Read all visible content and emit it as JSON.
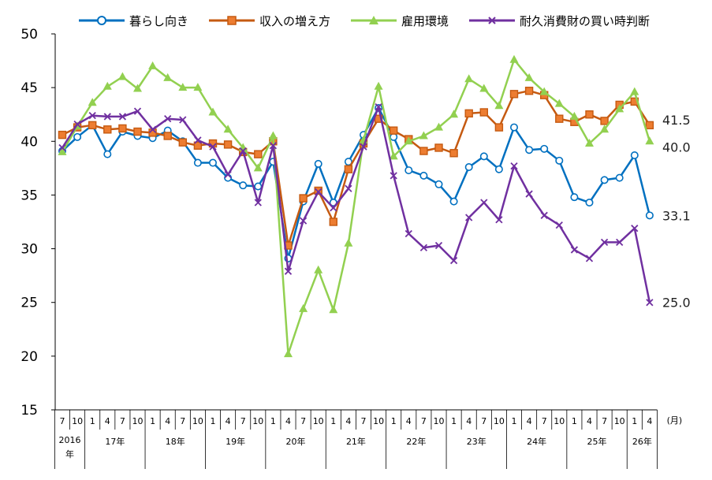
{
  "chart_data": {
    "type": "line",
    "title": "",
    "xlabel": "",
    "ylabel": "",
    "ylim": [
      15,
      50
    ],
    "yticks": [
      15,
      20,
      25,
      30,
      35,
      40,
      45,
      50
    ],
    "grid": false,
    "legend_position": "top",
    "month_unit": "(月)",
    "x_months": [
      "7",
      "10",
      "1",
      "4",
      "7",
      "10",
      "1",
      "4",
      "7",
      "10",
      "1",
      "4",
      "7",
      "10",
      "1",
      "4",
      "7",
      "10",
      "1",
      "4",
      "7",
      "10",
      "1",
      "4",
      "7",
      "10",
      "1",
      "4",
      "7",
      "10",
      "1",
      "4",
      "7",
      "10",
      "1",
      "4",
      "7",
      "10",
      "1",
      "4"
    ],
    "year_groups": [
      {
        "label": "2016年",
        "start": 0,
        "end": 1
      },
      {
        "label": "17年",
        "start": 2,
        "end": 5
      },
      {
        "label": "18年",
        "start": 6,
        "end": 9
      },
      {
        "label": "19年",
        "start": 10,
        "end": 13
      },
      {
        "label": "20年",
        "start": 14,
        "end": 17
      },
      {
        "label": "21年",
        "start": 18,
        "end": 21
      },
      {
        "label": "22年",
        "start": 22,
        "end": 25
      },
      {
        "label": "23年",
        "start": 26,
        "end": 29
      },
      {
        "label": "24年",
        "start": 30,
        "end": 33
      },
      {
        "label": "25年",
        "start": 34,
        "end": 37
      },
      {
        "label": "26年",
        "start": 38,
        "end": 39
      }
    ],
    "series": [
      {
        "name": "暮らし向き",
        "color": "#0070C0",
        "marker": "circle",
        "values": [
          39.1,
          40.4,
          41.5,
          38.8,
          40.9,
          40.5,
          40.3,
          41.0,
          40.0,
          38.0,
          38.0,
          36.6,
          35.9,
          35.8,
          38.1,
          29.1,
          34.4,
          37.9,
          34.3,
          38.1,
          40.6,
          43.1,
          40.4,
          37.3,
          36.8,
          36.0,
          34.4,
          37.6,
          38.6,
          37.4,
          41.3,
          39.2,
          39.3,
          38.2,
          34.8,
          34.3,
          36.4,
          36.6,
          38.7,
          33.1
        ],
        "end_label": "33.1"
      },
      {
        "name": "収入の増え方",
        "color": "#C55A11",
        "marker": "square",
        "values": [
          40.6,
          41.3,
          41.5,
          41.1,
          41.2,
          40.9,
          40.8,
          40.5,
          39.9,
          39.6,
          39.8,
          39.7,
          39.0,
          38.8,
          40.0,
          30.3,
          34.7,
          35.4,
          32.5,
          37.4,
          39.8,
          42.1,
          41.0,
          40.2,
          39.1,
          39.4,
          38.9,
          42.6,
          42.7,
          41.3,
          44.4,
          44.7,
          44.3,
          42.1,
          41.8,
          42.5,
          41.9,
          43.4,
          43.7,
          41.5
        ],
        "end_label": "41.5"
      },
      {
        "name": "雇用環境",
        "color": "#92D050",
        "marker": "triangle",
        "values": [
          39.0,
          41.4,
          43.6,
          45.1,
          46.0,
          44.9,
          47.0,
          45.9,
          45.0,
          45.0,
          42.7,
          41.1,
          39.4,
          37.5,
          40.5,
          20.2,
          24.4,
          28.0,
          24.3,
          30.5,
          40.1,
          45.1,
          38.6,
          40.0,
          40.5,
          41.3,
          42.5,
          45.8,
          44.9,
          43.3,
          47.6,
          45.9,
          44.6,
          43.5,
          42.3,
          39.8,
          41.1,
          43.0,
          44.6,
          40.0
        ],
        "end_label": "40.0"
      },
      {
        "name": "耐久消費財の買い時判断",
        "color": "#7030A0",
        "marker": "x",
        "values": [
          39.4,
          41.6,
          42.4,
          42.3,
          42.3,
          42.8,
          41.1,
          42.1,
          42.0,
          40.1,
          39.5,
          36.9,
          39.1,
          34.3,
          39.6,
          27.9,
          32.6,
          35.3,
          33.8,
          35.6,
          39.5,
          43.2,
          36.8,
          31.4,
          30.1,
          30.3,
          28.9,
          32.9,
          34.3,
          32.7,
          37.7,
          35.1,
          33.1,
          32.2,
          29.9,
          29.1,
          30.6,
          30.6,
          31.9,
          25.0
        ],
        "end_label": "25.0"
      }
    ]
  }
}
